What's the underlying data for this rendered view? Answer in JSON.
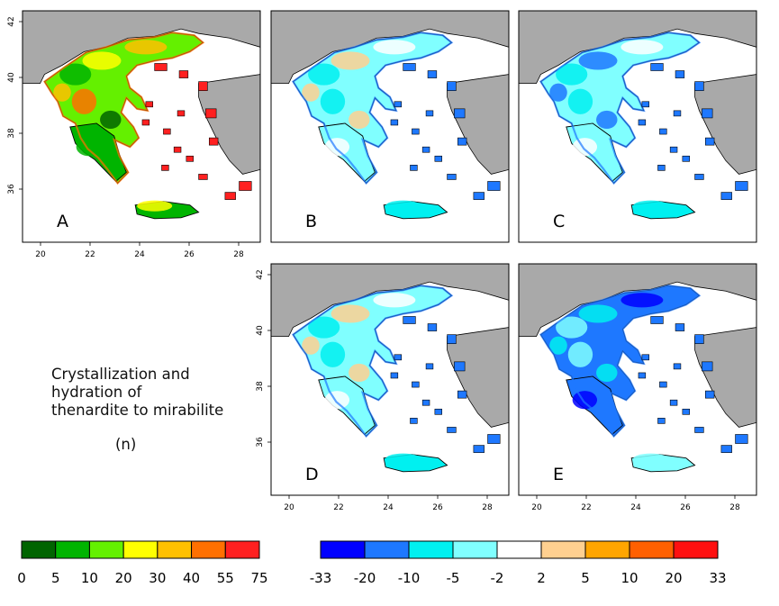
{
  "panels": [
    {
      "label": "A",
      "palette": "count"
    },
    {
      "label": "B",
      "palette": "change"
    },
    {
      "label": "C",
      "palette": "change"
    },
    {
      "label": "D",
      "palette": "change"
    },
    {
      "label": "E",
      "palette": "change"
    }
  ],
  "map_axes": {
    "x_ticks": [
      "20",
      "22",
      "24",
      "26",
      "28"
    ],
    "y_ticks": [
      "36",
      "38",
      "40",
      "42"
    ]
  },
  "caption": {
    "line1": "Crystallization and",
    "line2": "hydration of",
    "line3": "thenardite to mirabilite",
    "unit": "(n)"
  },
  "legend_count": {
    "colors": [
      "#006400",
      "#00b400",
      "#64f000",
      "#ffff00",
      "#ffc000",
      "#ff7000",
      "#ff2020"
    ],
    "labels": [
      "0",
      "5",
      "10",
      "20",
      "30",
      "40",
      "55",
      "75"
    ]
  },
  "legend_change": {
    "colors": [
      "#0000ff",
      "#1e78ff",
      "#00f0f0",
      "#80ffff",
      "#ffffff",
      "#ffd090",
      "#ffa500",
      "#ff6000",
      "#ff1010"
    ],
    "labels": [
      "-33",
      "-20",
      "-10",
      "-5",
      "-2",
      "2",
      "5",
      "10",
      "20",
      "33"
    ]
  },
  "colors": {
    "land_outside": "#a9a9a9",
    "sea": "#ffffff",
    "frame": "#000000"
  }
}
